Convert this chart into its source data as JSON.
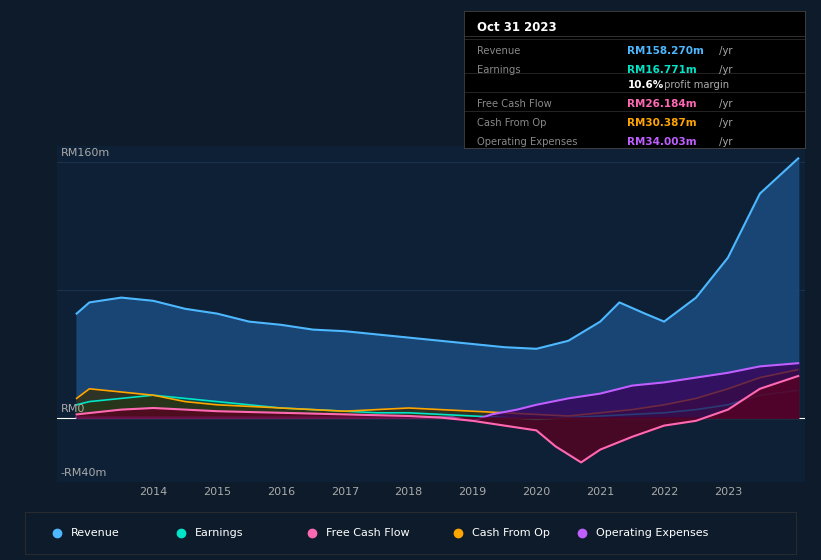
{
  "bg_color": "#0d1b2a",
  "chart_bg": "#0d2035",
  "grid_color": "#1e3a5a",
  "zero_line_color": "#ffffff",
  "ylim": [
    -40,
    170
  ],
  "xlim": [
    2012.5,
    2024.2
  ],
  "xticks": [
    2014,
    2015,
    2016,
    2017,
    2018,
    2019,
    2020,
    2021,
    2022,
    2023
  ],
  "ytick_labels": [
    {
      "val": 160,
      "label": "RM160m"
    },
    {
      "val": 0,
      "label": "RM0"
    },
    {
      "val": -40,
      "label": "-RM40m"
    }
  ],
  "tooltip": {
    "date": "Oct 31 2023",
    "rows": [
      {
        "label": "Revenue",
        "value": "RM158.270m",
        "suffix": " /yr",
        "color": "#4db8ff"
      },
      {
        "label": "Earnings",
        "value": "RM16.771m",
        "suffix": " /yr",
        "color": "#00e5c8"
      },
      {
        "label": "",
        "value": "10.6%",
        "suffix": " profit margin",
        "color": "#ffffff",
        "bold": true
      },
      {
        "label": "Free Cash Flow",
        "value": "RM26.184m",
        "suffix": " /yr",
        "color": "#ff69b4"
      },
      {
        "label": "Cash From Op",
        "value": "RM30.387m",
        "suffix": " /yr",
        "color": "#ffa500"
      },
      {
        "label": "Operating Expenses",
        "value": "RM34.003m",
        "suffix": " /yr",
        "color": "#bf5fff"
      }
    ]
  },
  "series": {
    "revenue": {
      "color": "#4db8ff",
      "fill_color": "#1a4a7a",
      "years": [
        2012.8,
        2013.0,
        2013.5,
        2014.0,
        2014.5,
        2015.0,
        2015.5,
        2016.0,
        2016.5,
        2017.0,
        2017.5,
        2018.0,
        2018.5,
        2019.0,
        2019.5,
        2020.0,
        2020.5,
        2021.0,
        2021.3,
        2021.7,
        2022.0,
        2022.5,
        2023.0,
        2023.5,
        2024.1
      ],
      "values": [
        65,
        72,
        75,
        73,
        68,
        65,
        60,
        58,
        55,
        54,
        52,
        50,
        48,
        46,
        44,
        43,
        48,
        60,
        72,
        65,
        60,
        75,
        100,
        140,
        162
      ]
    },
    "earnings": {
      "color": "#00e5c8",
      "fill_color": "#004d40",
      "years": [
        2012.8,
        2013.0,
        2013.5,
        2014.0,
        2014.5,
        2015.0,
        2015.5,
        2016.0,
        2016.5,
        2017.0,
        2017.5,
        2018.0,
        2018.5,
        2019.0,
        2019.5,
        2020.0,
        2020.5,
        2021.0,
        2021.5,
        2022.0,
        2022.5,
        2023.0,
        2023.5,
        2024.1
      ],
      "values": [
        8,
        10,
        12,
        14,
        12,
        10,
        8,
        6,
        5,
        4,
        3,
        3,
        2,
        1,
        0,
        -1,
        0,
        1,
        2,
        3,
        5,
        8,
        14,
        17
      ]
    },
    "free_cash_flow": {
      "color": "#ff69b4",
      "fill_color": "#5a0020",
      "years": [
        2012.8,
        2013.5,
        2014.0,
        2015.0,
        2016.0,
        2017.0,
        2018.0,
        2018.5,
        2019.0,
        2019.5,
        2020.0,
        2020.3,
        2020.7,
        2021.0,
        2021.5,
        2022.0,
        2022.5,
        2023.0,
        2023.5,
        2024.1
      ],
      "values": [
        2,
        5,
        6,
        4,
        3,
        2,
        1,
        0,
        -2,
        -5,
        -8,
        -18,
        -28,
        -20,
        -12,
        -5,
        -2,
        5,
        18,
        26
      ]
    },
    "cash_from_op": {
      "color": "#ffa500",
      "fill_color": "#3a2a00",
      "years": [
        2012.8,
        2013.0,
        2013.5,
        2014.0,
        2014.5,
        2015.0,
        2015.5,
        2016.0,
        2016.5,
        2017.0,
        2017.5,
        2018.0,
        2018.5,
        2019.0,
        2019.5,
        2020.0,
        2020.5,
        2021.0,
        2021.5,
        2022.0,
        2022.5,
        2023.0,
        2023.5,
        2024.1
      ],
      "values": [
        12,
        18,
        16,
        14,
        10,
        8,
        7,
        6,
        5,
        4,
        5,
        6,
        5,
        4,
        3,
        2,
        1,
        3,
        5,
        8,
        12,
        18,
        25,
        30
      ]
    },
    "operating_expenses": {
      "color": "#bf5fff",
      "fill_color": "#3a005a",
      "years": [
        2012.8,
        2013.0,
        2013.5,
        2014.0,
        2015.0,
        2016.0,
        2017.0,
        2018.0,
        2018.7,
        2019.0,
        2019.3,
        2019.7,
        2020.0,
        2020.5,
        2021.0,
        2021.5,
        2022.0,
        2022.5,
        2023.0,
        2023.5,
        2024.1
      ],
      "values": [
        0,
        0,
        0,
        0,
        0,
        0,
        0,
        0,
        0,
        -2,
        2,
        5,
        8,
        12,
        15,
        20,
        22,
        25,
        28,
        32,
        34
      ]
    }
  },
  "legend": [
    {
      "label": "Revenue",
      "color": "#4db8ff"
    },
    {
      "label": "Earnings",
      "color": "#00e5c8"
    },
    {
      "label": "Free Cash Flow",
      "color": "#ff69b4"
    },
    {
      "label": "Cash From Op",
      "color": "#ffa500"
    },
    {
      "label": "Operating Expenses",
      "color": "#bf5fff"
    }
  ]
}
